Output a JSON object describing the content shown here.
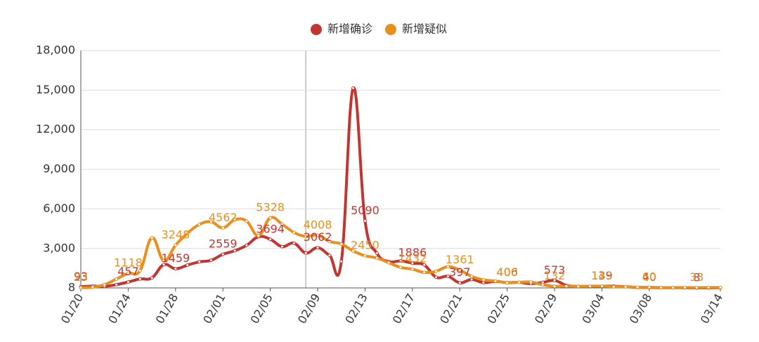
{
  "chart_data": {
    "type": "line",
    "categories": [
      "01/20",
      "01/21",
      "01/22",
      "01/23",
      "01/24",
      "01/25",
      "01/26",
      "01/27",
      "01/28",
      "01/29",
      "01/30",
      "01/31",
      "02/01",
      "02/02",
      "02/03",
      "02/04",
      "02/05",
      "02/06",
      "02/07",
      "02/08",
      "02/09",
      "02/10",
      "02/11",
      "02/12",
      "02/13",
      "02/14",
      "02/15",
      "02/16",
      "02/17",
      "02/18",
      "02/19",
      "02/20",
      "02/21",
      "02/22",
      "02/23",
      "02/24",
      "02/25",
      "02/26",
      "02/27",
      "02/28",
      "02/29",
      "03/01",
      "03/02",
      "03/03",
      "03/04",
      "03/05",
      "03/06",
      "03/07",
      "03/08",
      "03/09",
      "03/10",
      "03/11",
      "03/12",
      "03/13",
      "03/14"
    ],
    "series": [
      {
        "name": "新增确诊",
        "color": "#c23531",
        "values": [
          93,
          149,
          131,
          259,
          457,
          688,
          769,
          1771,
          1459,
          1737,
          1982,
          2102,
          2559,
          2829,
          3235,
          3887,
          3694,
          3143,
          3399,
          2656,
          3062,
          2478,
          2015,
          15152,
          5090,
          2641,
          2009,
          2048,
          1886,
          1749,
          820,
          889,
          397,
          648,
          409,
          508,
          406,
          433,
          327,
          427,
          573,
          202,
          125,
          119,
          139,
          143,
          99,
          44,
          40,
          19,
          24,
          15,
          8,
          11,
          20
        ]
      },
      {
        "name": "新增疑似",
        "color": "#e98f1b",
        "values": [
          23,
          60,
          257,
          680,
          1118,
          1309,
          3806,
          2077,
          3248,
          4148,
          4812,
          5019,
          4562,
          5173,
          5072,
          3971,
          5328,
          4833,
          4214,
          3916,
          4008,
          3536,
          3342,
          2807,
          2450,
          2277,
          1918,
          1563,
          1432,
          1185,
          1277,
          1614,
          1361,
          882,
          620,
          530,
          400,
          439,
          452,
          248,
          132,
          141,
          129,
          143,
          143,
          102,
          99,
          60,
          60,
          36,
          31,
          33,
          33,
          41,
          39
        ]
      }
    ],
    "ylim": [
      8,
      18000
    ],
    "yticks": [
      8,
      {
        "value": 3000,
        "label": "3,000"
      },
      {
        "value": 6000,
        "label": "6,000"
      },
      {
        "value": 9000,
        "label": "9,000"
      },
      {
        "value": 12000,
        "label": "12,000"
      },
      {
        "value": 15000,
        "label": "15,000"
      },
      {
        "value": 18000,
        "label": "18,000"
      }
    ],
    "grid": true
  }
}
